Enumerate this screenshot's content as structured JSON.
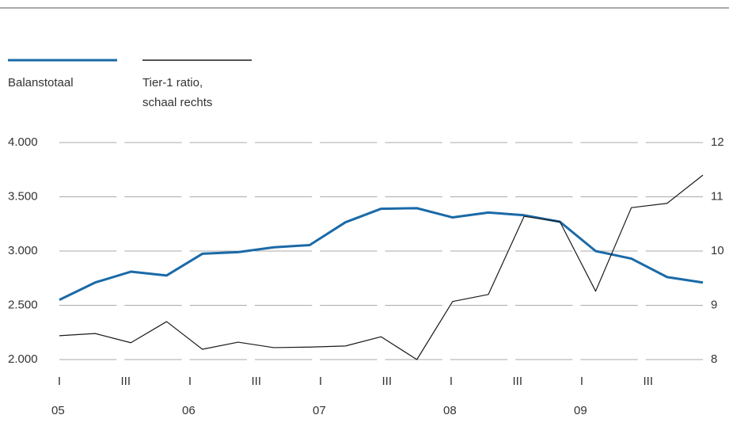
{
  "chart_data": {
    "type": "line",
    "series": [
      {
        "name": "Balanstotaal",
        "color": "#1a6aa8",
        "values": [
          2550,
          2710,
          2810,
          2775,
          2975,
          2990,
          3035,
          3055,
          3265,
          3390,
          3395,
          3310,
          3355,
          3330,
          3270,
          3000,
          2930,
          2760,
          2710
        ]
      },
      {
        "name": "Tier-1 ratio, schaal rechts",
        "color": "#1a1a1a",
        "axis": "y2",
        "values": [
          8.44,
          8.48,
          8.31,
          8.7,
          8.19,
          8.32,
          8.22,
          8.23,
          8.25,
          8.42,
          8.0,
          9.07,
          9.2,
          10.64,
          10.54,
          9.26,
          10.8,
          10.88,
          11.4
        ]
      }
    ],
    "quarter_labels": [
      "I",
      null,
      "III",
      null,
      "I",
      null,
      "III",
      null,
      "I",
      null,
      "III",
      null,
      "I",
      null,
      "III",
      null,
      "I",
      null,
      "III",
      null
    ],
    "year_labels": [
      "05",
      "06",
      "07",
      "08",
      "09"
    ],
    "ylim": [
      2000,
      4000
    ],
    "yticks": [
      {
        "value": 2000,
        "label": "2.000"
      },
      {
        "value": 2500,
        "label": "2.500"
      },
      {
        "value": 3000,
        "label": "3.000"
      },
      {
        "value": 3500,
        "label": "3.500"
      },
      {
        "value": 4000,
        "label": "4.000"
      }
    ],
    "y2lim": [
      8,
      12
    ],
    "y2ticks": [
      8,
      9,
      10,
      11,
      12
    ],
    "grid": true
  }
}
